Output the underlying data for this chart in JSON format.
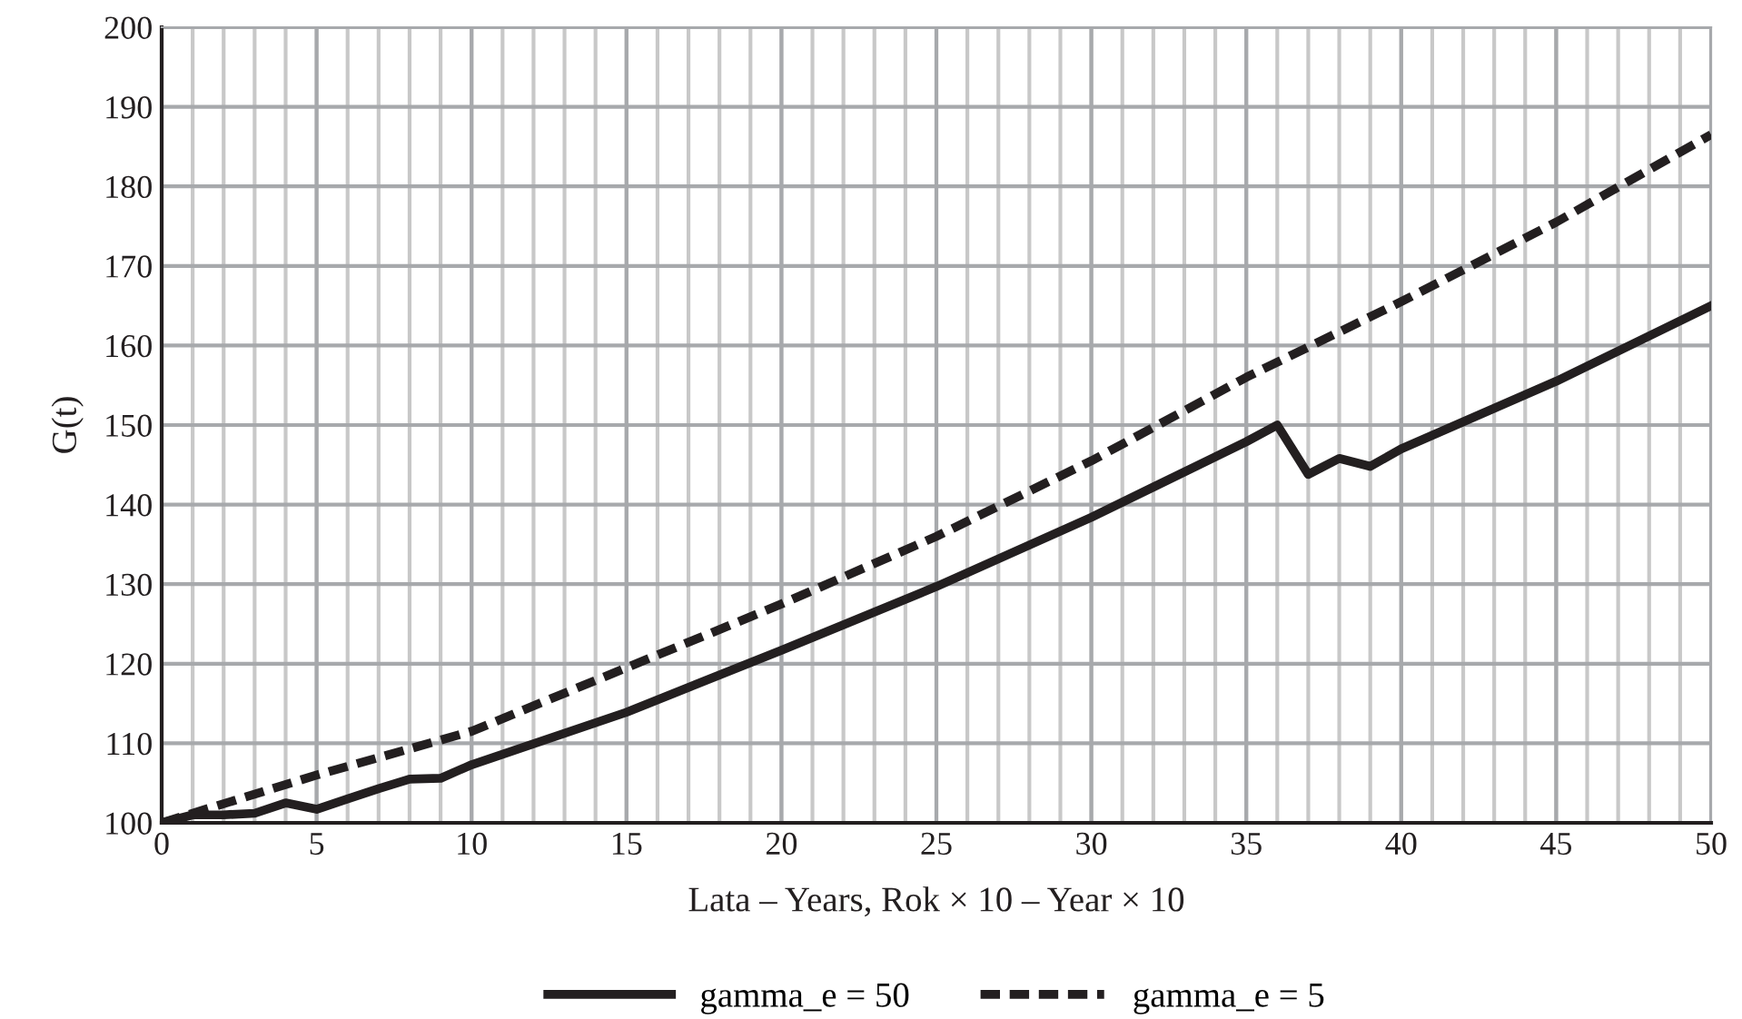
{
  "chart_data": {
    "type": "line",
    "xlabel": "Lata – Years, Rok × 10 – Year × 10",
    "ylabel": "G(t)",
    "xlim": [
      0,
      50
    ],
    "ylim": [
      100,
      200
    ],
    "xticks": [
      0,
      5,
      10,
      15,
      20,
      25,
      30,
      35,
      40,
      45,
      50
    ],
    "yticks": [
      100,
      110,
      120,
      130,
      140,
      150,
      160,
      170,
      180,
      190,
      200
    ],
    "grid": true,
    "legend": "bottom",
    "series": [
      {
        "name": "gamma_e = 50",
        "color": "#231f20",
        "line_style": "solid",
        "x": [
          0,
          1,
          2,
          3,
          4,
          5,
          6,
          7,
          8,
          9,
          10,
          15,
          20,
          25,
          30,
          35,
          36,
          37,
          38,
          39,
          40,
          45,
          50
        ],
        "values": [
          100,
          101,
          101,
          101.2,
          102.5,
          101.7,
          103,
          104.3,
          105.5,
          105.6,
          107.3,
          113.9,
          121.7,
          129.7,
          138.4,
          147.9,
          150,
          143.8,
          145.8,
          144.8,
          147,
          155.5,
          165
        ]
      },
      {
        "name": "gamma_e = 5",
        "color": "#231f20",
        "line_style": "dashed",
        "x": [
          0,
          5,
          10,
          15,
          20,
          25,
          30,
          35,
          40,
          45,
          50
        ],
        "values": [
          100,
          106,
          111.5,
          119.5,
          127.5,
          136,
          145.5,
          156,
          165.5,
          175.5,
          186.5
        ]
      }
    ]
  }
}
